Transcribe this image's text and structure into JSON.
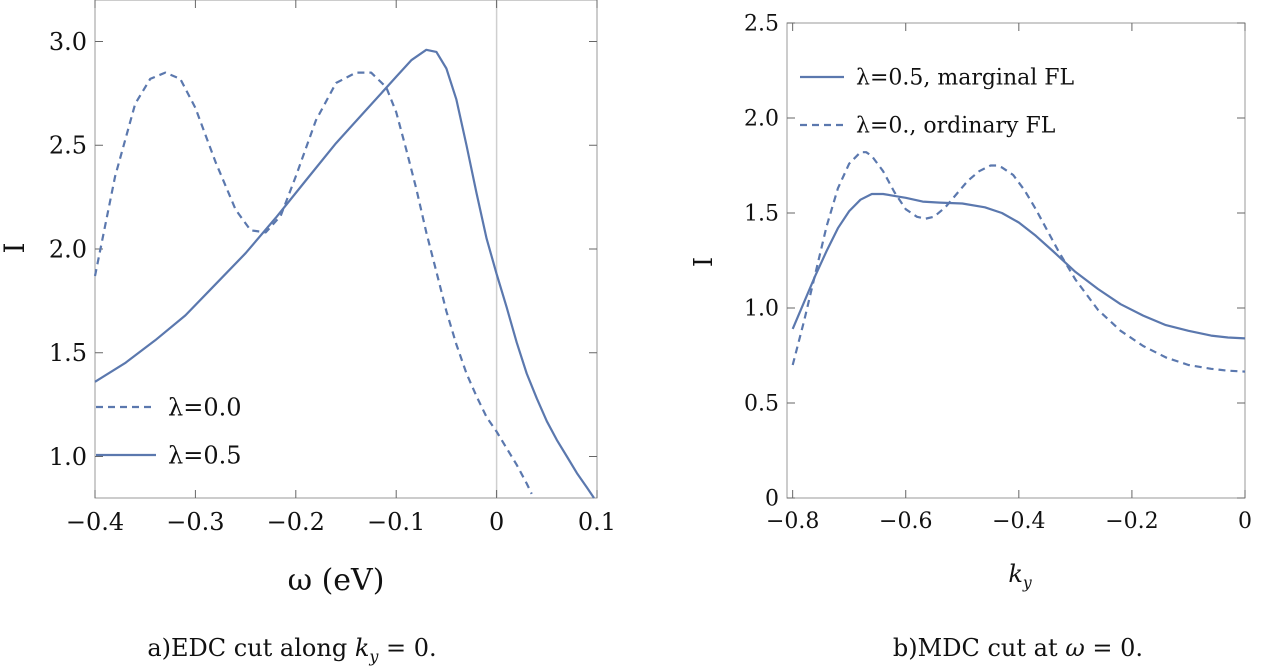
{
  "chart_data": [
    {
      "type": "line",
      "xlabel": "ω (eV)",
      "ylabel": "I",
      "caption": "a)EDC cut along k_y = 0.",
      "caption_parts": {
        "prefix": "a)EDC cut along ",
        "var": "k",
        "sub": "y",
        "suffix": " = 0."
      },
      "xlim": [
        -0.4,
        0.1
      ],
      "ylim": [
        0.8,
        3.2
      ],
      "xticks": [
        -0.4,
        -0.3,
        -0.2,
        -0.1,
        0,
        0.1
      ],
      "xtick_labels": [
        "−0.4",
        "−0.3",
        "−0.2",
        "−0.1",
        "0",
        "0.1"
      ],
      "yticks": [
        1.0,
        1.5,
        2.0,
        2.5,
        3.0
      ],
      "ytick_labels": [
        "1.0",
        "1.5",
        "2.0",
        "2.5",
        "3.0"
      ],
      "vline_x": 0,
      "legend_position": "lower-left",
      "series": [
        {
          "name": "λ=0.0",
          "dashed": true,
          "color": "#5B78AE",
          "x": [
            -0.4,
            -0.38,
            -0.36,
            -0.345,
            -0.33,
            -0.315,
            -0.3,
            -0.28,
            -0.26,
            -0.245,
            -0.23,
            -0.215,
            -0.2,
            -0.18,
            -0.16,
            -0.14,
            -0.125,
            -0.11,
            -0.1,
            -0.09,
            -0.08,
            -0.07,
            -0.06,
            -0.05,
            -0.04,
            -0.03,
            -0.02,
            -0.01,
            0.0,
            0.01,
            0.02,
            0.03,
            0.035
          ],
          "y": [
            1.87,
            2.35,
            2.7,
            2.82,
            2.85,
            2.82,
            2.68,
            2.42,
            2.19,
            2.09,
            2.08,
            2.16,
            2.35,
            2.62,
            2.8,
            2.85,
            2.85,
            2.78,
            2.66,
            2.48,
            2.29,
            2.08,
            1.89,
            1.7,
            1.54,
            1.4,
            1.29,
            1.19,
            1.12,
            1.04,
            0.96,
            0.87,
            0.82
          ]
        },
        {
          "name": "λ=0.5",
          "dashed": false,
          "color": "#5B78AE",
          "x": [
            -0.4,
            -0.37,
            -0.34,
            -0.31,
            -0.28,
            -0.25,
            -0.22,
            -0.19,
            -0.16,
            -0.13,
            -0.1,
            -0.085,
            -0.07,
            -0.06,
            -0.05,
            -0.04,
            -0.03,
            -0.02,
            -0.01,
            0.0,
            0.01,
            0.02,
            0.03,
            0.04,
            0.05,
            0.06,
            0.07,
            0.08,
            0.09,
            0.097
          ],
          "y": [
            1.36,
            1.45,
            1.56,
            1.68,
            1.83,
            1.98,
            2.15,
            2.33,
            2.51,
            2.67,
            2.83,
            2.91,
            2.96,
            2.95,
            2.87,
            2.72,
            2.5,
            2.27,
            2.05,
            1.88,
            1.72,
            1.55,
            1.4,
            1.28,
            1.17,
            1.08,
            1.0,
            0.92,
            0.85,
            0.8
          ]
        }
      ]
    },
    {
      "type": "line",
      "xlabel": "k_y",
      "xlabel_parts": {
        "var": "k",
        "sub": "y"
      },
      "ylabel": "I",
      "caption": "b)MDC cut at ω = 0.",
      "caption_parts": {
        "prefix": "b)MDC cut at ",
        "var": "ω",
        "sub": "",
        "suffix": " = 0."
      },
      "xlim": [
        -0.81,
        0
      ],
      "ylim": [
        0,
        2.5
      ],
      "xticks": [
        -0.8,
        -0.6,
        -0.4,
        -0.2,
        0
      ],
      "xtick_labels": [
        "−0.8",
        "−0.6",
        "−0.4",
        "−0.2",
        "0"
      ],
      "yticks": [
        0,
        0.5,
        1.0,
        1.5,
        2.0,
        2.5
      ],
      "ytick_labels": [
        "0",
        "0.5",
        "1.0",
        "1.5",
        "2.0",
        "2.5"
      ],
      "legend_position": "top-left",
      "series": [
        {
          "name": "λ=0.5, marginal FL",
          "dashed": false,
          "color": "#5B78AE",
          "x": [
            -0.8,
            -0.78,
            -0.76,
            -0.74,
            -0.72,
            -0.7,
            -0.68,
            -0.66,
            -0.64,
            -0.62,
            -0.6,
            -0.57,
            -0.54,
            -0.5,
            -0.46,
            -0.43,
            -0.4,
            -0.37,
            -0.34,
            -0.3,
            -0.26,
            -0.22,
            -0.18,
            -0.14,
            -0.1,
            -0.06,
            -0.03,
            0
          ],
          "y": [
            0.89,
            1.03,
            1.17,
            1.3,
            1.42,
            1.51,
            1.57,
            1.6,
            1.6,
            1.59,
            1.58,
            1.56,
            1.555,
            1.55,
            1.53,
            1.5,
            1.45,
            1.38,
            1.3,
            1.19,
            1.1,
            1.02,
            0.96,
            0.91,
            0.88,
            0.855,
            0.845,
            0.84
          ]
        },
        {
          "name": "λ=0., ordinary FL",
          "dashed": true,
          "color": "#5B78AE",
          "x": [
            -0.8,
            -0.78,
            -0.76,
            -0.74,
            -0.72,
            -0.7,
            -0.68,
            -0.67,
            -0.66,
            -0.64,
            -0.62,
            -0.6,
            -0.58,
            -0.565,
            -0.55,
            -0.53,
            -0.51,
            -0.49,
            -0.47,
            -0.45,
            -0.44,
            -0.43,
            -0.41,
            -0.39,
            -0.37,
            -0.35,
            -0.33,
            -0.3,
            -0.26,
            -0.22,
            -0.18,
            -0.14,
            -0.1,
            -0.06,
            -0.03,
            0
          ],
          "y": [
            0.7,
            0.93,
            1.18,
            1.43,
            1.63,
            1.76,
            1.82,
            1.82,
            1.8,
            1.72,
            1.61,
            1.52,
            1.48,
            1.47,
            1.48,
            1.53,
            1.6,
            1.67,
            1.72,
            1.75,
            1.75,
            1.74,
            1.7,
            1.62,
            1.52,
            1.41,
            1.3,
            1.15,
            0.99,
            0.88,
            0.8,
            0.74,
            0.7,
            0.68,
            0.67,
            0.665
          ]
        }
      ]
    }
  ]
}
